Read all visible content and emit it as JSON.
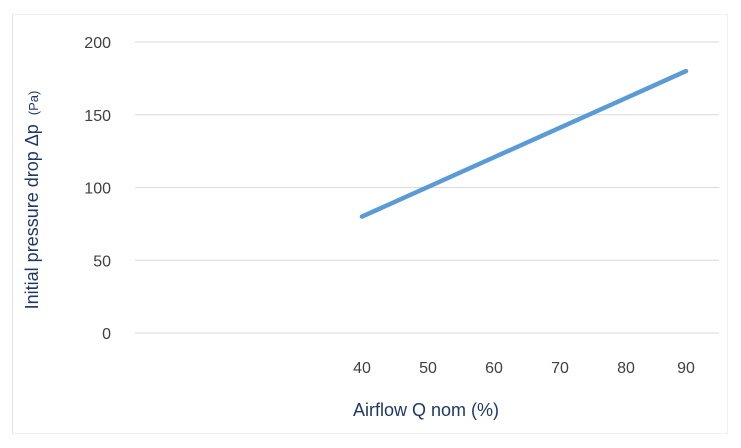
{
  "chart_data": {
    "type": "line",
    "title": "",
    "xlabel": "Airflow Q nom (%)",
    "ylabel": "Initial pressure drop Δp",
    "ylabel_unit": "(Pa)",
    "x_categories": [
      "40",
      "50",
      "60",
      "70",
      "80",
      "90"
    ],
    "y_ticks": [
      "0",
      "50",
      "100",
      "150",
      "200"
    ],
    "ylim": [
      0,
      200
    ],
    "grid": true,
    "series": [
      {
        "x": [
          40,
          90
        ],
        "y": [
          80,
          180
        ],
        "color": "#5b9bd5"
      }
    ]
  },
  "colors": {
    "line": "#5b9bd5",
    "grid": "#d9d9d9",
    "axis_title": "#1f3864",
    "tick": "#404040"
  }
}
